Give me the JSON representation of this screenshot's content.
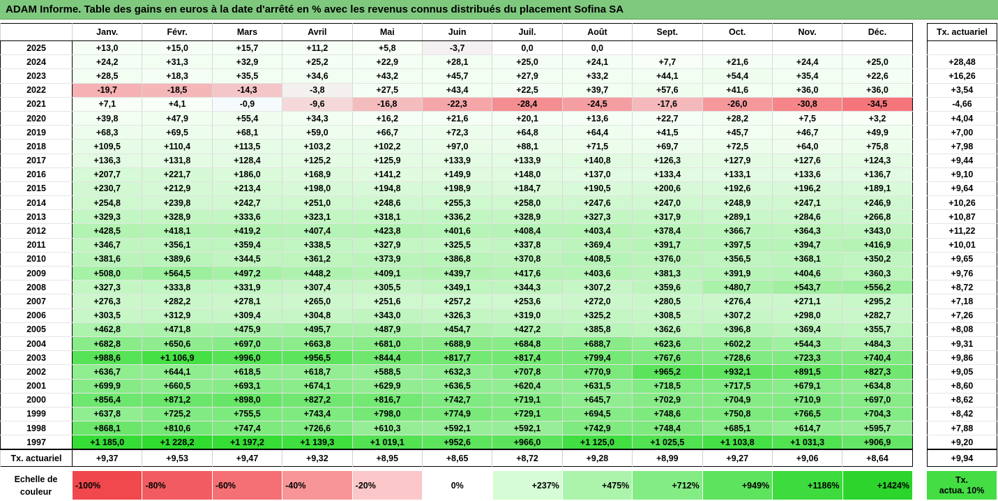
{
  "title": "ADAM Informe. Table des gains en euros à la date d'arrêté en % avec les revenus connus distribués du placement Sofina SA",
  "months": [
    "Janv.",
    "Févr.",
    "Mars",
    "Avril",
    "Mai",
    "Juin",
    "Juil.",
    "Août",
    "Sept.",
    "Oct.",
    "Nov.",
    "Déc."
  ],
  "side_header": "Tx. actuariel",
  "rows": [
    {
      "year": "2025",
      "values": [
        "+13,0",
        "+15,0",
        "+15,7",
        "+11,2",
        "+5,8",
        "-3,7",
        "0,0",
        "0,0",
        "",
        "",
        "",
        ""
      ],
      "tx": ""
    },
    {
      "year": "2024",
      "values": [
        "+24,2",
        "+31,3",
        "+32,9",
        "+25,2",
        "+22,9",
        "+28,1",
        "+25,0",
        "+24,1",
        "+7,7",
        "+21,6",
        "+24,4",
        "+25,0"
      ],
      "tx": "+28,48"
    },
    {
      "year": "2023",
      "values": [
        "+28,5",
        "+18,3",
        "+35,5",
        "+34,6",
        "+43,2",
        "+45,7",
        "+27,9",
        "+33,2",
        "+44,1",
        "+54,4",
        "+35,4",
        "+22,6"
      ],
      "tx": "+16,26"
    },
    {
      "year": "2022",
      "values": [
        "-19,7",
        "-18,5",
        "-14,3",
        "-3,8",
        "+27,5",
        "+43,4",
        "+22,5",
        "+39,7",
        "+57,6",
        "+41,6",
        "+36,0",
        "+36,0"
      ],
      "tx": "+3,54"
    },
    {
      "year": "2021",
      "values": [
        "+7,1",
        "+4,1",
        "-0,9",
        "-9,6",
        "-16,8",
        "-22,3",
        "-28,4",
        "-24,5",
        "-17,6",
        "-26,0",
        "-30,8",
        "-34,5"
      ],
      "tx": "-4,66"
    },
    {
      "year": "2020",
      "values": [
        "+39,8",
        "+47,9",
        "+55,4",
        "+34,3",
        "+16,2",
        "+21,6",
        "+20,1",
        "+13,6",
        "+22,7",
        "+28,2",
        "+7,5",
        "+3,2"
      ],
      "tx": "+4,04"
    },
    {
      "year": "2019",
      "values": [
        "+68,3",
        "+69,5",
        "+68,1",
        "+59,0",
        "+66,7",
        "+72,3",
        "+64,8",
        "+64,4",
        "+41,5",
        "+45,7",
        "+46,7",
        "+49,9"
      ],
      "tx": "+7,00"
    },
    {
      "year": "2018",
      "values": [
        "+109,5",
        "+110,4",
        "+113,5",
        "+103,2",
        "+102,2",
        "+97,0",
        "+88,1",
        "+71,5",
        "+69,7",
        "+72,5",
        "+64,0",
        "+75,8"
      ],
      "tx": "+7,98"
    },
    {
      "year": "2017",
      "values": [
        "+136,3",
        "+131,8",
        "+128,4",
        "+125,2",
        "+125,9",
        "+133,9",
        "+133,9",
        "+140,8",
        "+126,3",
        "+127,9",
        "+127,6",
        "+124,3"
      ],
      "tx": "+9,44"
    },
    {
      "year": "2016",
      "values": [
        "+207,7",
        "+221,7",
        "+186,0",
        "+168,9",
        "+141,2",
        "+149,9",
        "+148,0",
        "+137,0",
        "+133,4",
        "+133,1",
        "+133,6",
        "+136,7"
      ],
      "tx": "+9,10"
    },
    {
      "year": "2015",
      "values": [
        "+230,7",
        "+212,9",
        "+213,4",
        "+198,0",
        "+194,8",
        "+198,9",
        "+184,7",
        "+190,5",
        "+200,6",
        "+192,6",
        "+196,2",
        "+189,1"
      ],
      "tx": "+9,64"
    },
    {
      "year": "2014",
      "values": [
        "+254,8",
        "+239,8",
        "+242,7",
        "+251,0",
        "+248,6",
        "+255,3",
        "+258,0",
        "+247,6",
        "+247,0",
        "+248,9",
        "+247,1",
        "+246,9"
      ],
      "tx": "+10,26"
    },
    {
      "year": "2013",
      "values": [
        "+329,3",
        "+328,9",
        "+333,6",
        "+323,1",
        "+318,1",
        "+336,2",
        "+328,9",
        "+327,3",
        "+317,9",
        "+289,1",
        "+284,6",
        "+266,8"
      ],
      "tx": "+10,87"
    },
    {
      "year": "2012",
      "values": [
        "+428,5",
        "+418,1",
        "+419,2",
        "+407,4",
        "+423,8",
        "+401,6",
        "+408,4",
        "+403,4",
        "+378,4",
        "+366,7",
        "+364,3",
        "+343,0"
      ],
      "tx": "+11,22"
    },
    {
      "year": "2011",
      "values": [
        "+346,7",
        "+356,1",
        "+359,4",
        "+338,5",
        "+327,9",
        "+325,5",
        "+337,8",
        "+369,4",
        "+391,7",
        "+397,5",
        "+394,7",
        "+416,9"
      ],
      "tx": "+10,01"
    },
    {
      "year": "2010",
      "values": [
        "+381,6",
        "+389,6",
        "+344,5",
        "+361,2",
        "+373,9",
        "+386,8",
        "+370,8",
        "+408,5",
        "+376,0",
        "+356,5",
        "+368,1",
        "+350,2"
      ],
      "tx": "+9,65"
    },
    {
      "year": "2009",
      "values": [
        "+508,0",
        "+564,5",
        "+497,2",
        "+448,2",
        "+409,1",
        "+439,7",
        "+417,6",
        "+403,6",
        "+381,3",
        "+391,9",
        "+404,6",
        "+360,3"
      ],
      "tx": "+9,76"
    },
    {
      "year": "2008",
      "values": [
        "+327,3",
        "+333,8",
        "+331,9",
        "+307,4",
        "+305,5",
        "+349,1",
        "+344,3",
        "+307,2",
        "+359,6",
        "+480,7",
        "+543,7",
        "+556,2"
      ],
      "tx": "+8,72"
    },
    {
      "year": "2007",
      "values": [
        "+276,3",
        "+282,2",
        "+278,1",
        "+265,0",
        "+251,6",
        "+257,2",
        "+253,6",
        "+272,0",
        "+280,5",
        "+276,4",
        "+271,1",
        "+295,2"
      ],
      "tx": "+7,18"
    },
    {
      "year": "2006",
      "values": [
        "+303,5",
        "+312,9",
        "+309,4",
        "+304,8",
        "+343,0",
        "+326,3",
        "+319,0",
        "+325,2",
        "+308,5",
        "+307,2",
        "+298,0",
        "+282,7"
      ],
      "tx": "+7,26"
    },
    {
      "year": "2005",
      "values": [
        "+462,8",
        "+471,8",
        "+475,9",
        "+495,7",
        "+487,9",
        "+454,7",
        "+427,2",
        "+385,8",
        "+362,6",
        "+396,8",
        "+369,4",
        "+355,7"
      ],
      "tx": "+8,08"
    },
    {
      "year": "2004",
      "values": [
        "+682,8",
        "+650,6",
        "+697,0",
        "+663,8",
        "+681,0",
        "+688,9",
        "+684,8",
        "+688,7",
        "+623,6",
        "+602,2",
        "+544,3",
        "+484,3"
      ],
      "tx": "+9,31"
    },
    {
      "year": "2003",
      "values": [
        "+988,6",
        "+1 106,9",
        "+996,0",
        "+956,5",
        "+844,4",
        "+817,7",
        "+817,4",
        "+799,4",
        "+767,6",
        "+728,6",
        "+723,3",
        "+740,4"
      ],
      "tx": "+9,86"
    },
    {
      "year": "2002",
      "values": [
        "+636,7",
        "+644,1",
        "+618,5",
        "+618,7",
        "+588,5",
        "+632,3",
        "+707,8",
        "+770,9",
        "+965,2",
        "+932,1",
        "+891,5",
        "+827,3"
      ],
      "tx": "+9,05"
    },
    {
      "year": "2001",
      "values": [
        "+699,9",
        "+660,5",
        "+693,1",
        "+674,1",
        "+629,9",
        "+636,5",
        "+620,4",
        "+631,5",
        "+718,5",
        "+717,5",
        "+679,1",
        "+634,8"
      ],
      "tx": "+8,60"
    },
    {
      "year": "2000",
      "values": [
        "+856,4",
        "+871,2",
        "+898,0",
        "+827,2",
        "+816,7",
        "+742,7",
        "+719,1",
        "+645,7",
        "+702,9",
        "+704,9",
        "+710,9",
        "+697,0"
      ],
      "tx": "+8,62"
    },
    {
      "year": "1999",
      "values": [
        "+637,8",
        "+725,2",
        "+755,5",
        "+743,4",
        "+798,0",
        "+774,9",
        "+729,1",
        "+694,5",
        "+748,6",
        "+750,8",
        "+766,5",
        "+704,3"
      ],
      "tx": "+8,42"
    },
    {
      "year": "1998",
      "values": [
        "+868,1",
        "+810,6",
        "+747,4",
        "+726,6",
        "+610,3",
        "+592,1",
        "+592,1",
        "+742,9",
        "+748,4",
        "+685,1",
        "+614,7",
        "+595,7"
      ],
      "tx": "+7,88"
    },
    {
      "year": "1997",
      "values": [
        "+1 185,0",
        "+1 228,2",
        "+1 197,2",
        "+1 139,3",
        "+1 019,1",
        "+952,6",
        "+966,0",
        "+1 125,0",
        "+1 025,5",
        "+1 103,8",
        "+1 031,3",
        "+906,9"
      ],
      "tx": "+9,20"
    }
  ],
  "total_row": {
    "label": "Tx. actuariel",
    "values": [
      "+9,37",
      "+9,53",
      "+9,47",
      "+9,32",
      "+8,95",
      "+8,65",
      "+8,72",
      "+9,28",
      "+8,99",
      "+9,27",
      "+9,06",
      "+8,64"
    ],
    "tx": "+9,94"
  },
  "legend": {
    "label_line1": "Echelle de",
    "label_line2": "couleur",
    "items": [
      {
        "text": "-100%",
        "color": "#f0484d",
        "kind": "neg"
      },
      {
        "text": "-80%",
        "color": "#f25c60",
        "kind": "neg"
      },
      {
        "text": "-60%",
        "color": "#f57074",
        "kind": "neg"
      },
      {
        "text": "-40%",
        "color": "#f89598",
        "kind": "neg"
      },
      {
        "text": "-20%",
        "color": "#fbc7c8",
        "kind": "neg"
      },
      {
        "text": "0%",
        "color": "#ffffff",
        "kind": "zero"
      },
      {
        "text": "+237%",
        "color": "#d5fcd5",
        "kind": "pos"
      },
      {
        "text": "+475%",
        "color": "#acf4ac",
        "kind": "pos"
      },
      {
        "text": "+712%",
        "color": "#84ec84",
        "kind": "pos"
      },
      {
        "text": "+949%",
        "color": "#5ee35e",
        "kind": "pos"
      },
      {
        "text": "+1186%",
        "color": "#3ddb3d",
        "kind": "pos"
      },
      {
        "text": "+1424%",
        "color": "#2cd42c",
        "kind": "pos"
      }
    ],
    "side_line1": "Tx.",
    "side_line2": "actua. 10%"
  }
}
